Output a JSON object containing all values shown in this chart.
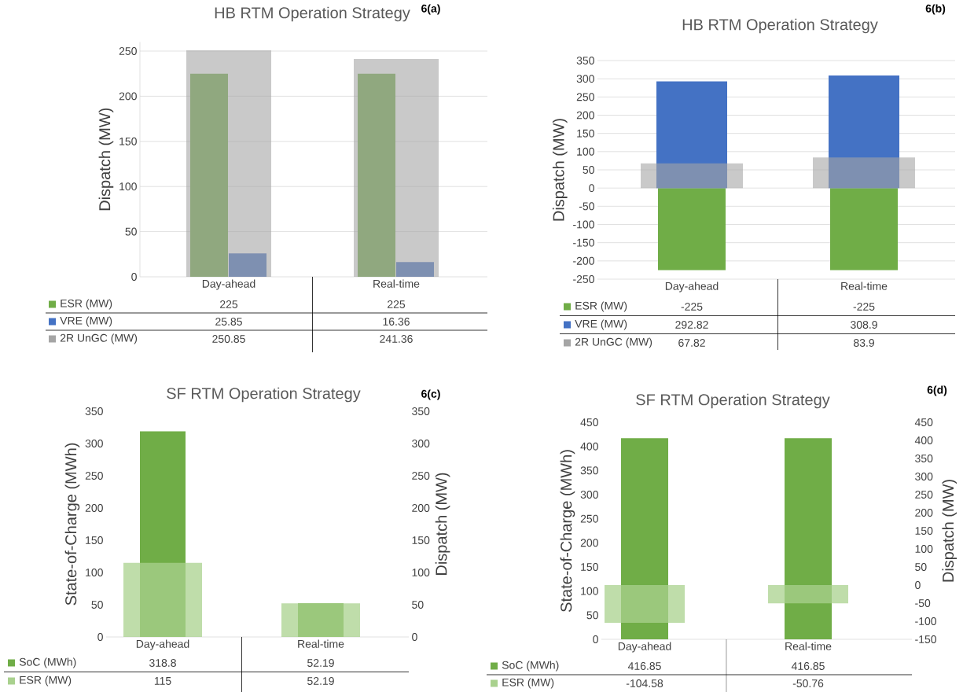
{
  "chart_data": [
    {
      "type": "bar",
      "title": "HB RTM Operation Strategy",
      "annotations": [
        "6(a)"
      ],
      "ylabel": "Dispatch (MW)",
      "categories": [
        "Day-ahead",
        "Real-time"
      ],
      "series": [
        {
          "name": "ESR (MW)",
          "color": "#70ad47",
          "values": [
            225,
            225
          ]
        },
        {
          "name": "VRE (MW)",
          "color": "#4472c4",
          "values": [
            25.85,
            16.36
          ]
        },
        {
          "name": "2R UnGC (MW)",
          "color": "#a5a5a5",
          "values": [
            250.85,
            241.36
          ]
        }
      ],
      "ylim": [
        0,
        260
      ],
      "yticks": [
        0,
        50,
        100,
        150,
        200,
        250
      ],
      "grid": "y",
      "legend": "bottom",
      "data_labels": true
    },
    {
      "type": "bar",
      "title": "HB RTM Operation Strategy",
      "annotations": [
        "6(b)"
      ],
      "ylabel": "Dispatch (MW)",
      "categories": [
        "Day-ahead",
        "Real-time"
      ],
      "series": [
        {
          "name": "ESR (MW)",
          "color": "#70ad47",
          "values": [
            -225,
            -225
          ]
        },
        {
          "name": "VRE (MW)",
          "color": "#4472c4",
          "values": [
            292.82,
            308.9
          ]
        },
        {
          "name": "2R UnGC (MW)",
          "color": "#a5a5a5",
          "values": [
            67.82,
            83.9
          ]
        }
      ],
      "ylim": [
        -250,
        350
      ],
      "yticks": [
        -250,
        -200,
        -150,
        -100,
        -50,
        0,
        50,
        100,
        150,
        200,
        250,
        300,
        350
      ],
      "grid": "y",
      "legend": "bottom",
      "data_labels": true
    },
    {
      "type": "bar",
      "title": "SF RTM Operation Strategy",
      "annotations": [
        "6(c)"
      ],
      "ylabel": "State-of-Charge (MWh)",
      "y2label": "Dispatch (MW)",
      "categories": [
        "Day-ahead",
        "Real-time"
      ],
      "series": [
        {
          "name": "SoC (MWh)",
          "color": "#70ad47",
          "values": [
            318.8,
            52.19
          ]
        },
        {
          "name": "ESR (MW)",
          "color": "#a9d18e",
          "values": [
            115,
            52.19
          ],
          "axis": "y2"
        }
      ],
      "ylim": [
        0,
        350
      ],
      "yticks": [
        0,
        50,
        100,
        150,
        200,
        250,
        300,
        350
      ],
      "y2lim": [
        0,
        350
      ],
      "y2ticks": [
        0,
        50,
        100,
        150,
        200,
        250,
        300,
        350
      ],
      "legend": "bottom",
      "data_labels": true
    },
    {
      "type": "bar",
      "title": "SF RTM Operation Strategy",
      "annotations": [
        "6(d)"
      ],
      "ylabel": "State-of-Charge (MWh)",
      "y2label": "Dispatch (MW)",
      "categories": [
        "Day-ahead",
        "Real-time"
      ],
      "series": [
        {
          "name": "SoC (MWh)",
          "color": "#70ad47",
          "values": [
            416.85,
            416.85
          ]
        },
        {
          "name": "ESR (MW)",
          "color": "#a9d18e",
          "values": [
            -104.58,
            -50.76
          ],
          "axis": "y2"
        }
      ],
      "ylim": [
        0,
        450
      ],
      "yticks": [
        0,
        50,
        100,
        150,
        200,
        250,
        300,
        350,
        400,
        450
      ],
      "y2lim": [
        -150,
        450
      ],
      "y2ticks": [
        -150,
        -100,
        -50,
        0,
        50,
        100,
        150,
        200,
        250,
        300,
        350,
        400,
        450
      ],
      "legend": "bottom",
      "data_labels": true
    }
  ]
}
